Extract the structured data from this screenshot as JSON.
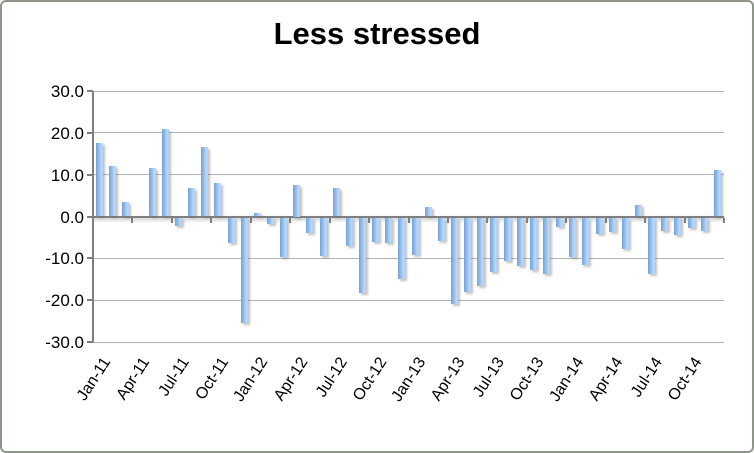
{
  "chart_data": {
    "type": "bar",
    "title": "Less stressed",
    "categories": [
      "Jan-11",
      "Feb-11",
      "Mar-11",
      "Apr-11",
      "May-11",
      "Jun-11",
      "Jul-11",
      "Aug-11",
      "Sep-11",
      "Oct-11",
      "Nov-11",
      "Dec-11",
      "Jan-12",
      "Feb-12",
      "Mar-12",
      "Apr-12",
      "May-12",
      "Jun-12",
      "Jul-12",
      "Aug-12",
      "Sep-12",
      "Oct-12",
      "Nov-12",
      "Dec-12",
      "Jan-13",
      "Feb-13",
      "Mar-13",
      "Apr-13",
      "May-13",
      "Jun-13",
      "Jul-13",
      "Aug-13",
      "Sep-13",
      "Oct-13",
      "Nov-13",
      "Dec-13",
      "Jan-14",
      "Feb-14",
      "Mar-14",
      "Apr-14",
      "May-14",
      "Jun-14",
      "Jul-14",
      "Aug-14",
      "Sep-14",
      "Oct-14",
      "Nov-14",
      "Dec-14"
    ],
    "values": [
      17.6,
      12.0,
      3.4,
      0.0,
      11.6,
      20.9,
      -2.1,
      6.8,
      16.6,
      8.0,
      -6.1,
      -25.2,
      0.9,
      -1.6,
      -9.4,
      7.5,
      -3.7,
      -9.2,
      6.9,
      -6.8,
      -18.1,
      -5.9,
      -6.2,
      -14.8,
      -8.9,
      2.2,
      -5.5,
      -20.7,
      -17.7,
      -16.3,
      -13.0,
      -10.4,
      -11.5,
      -12.6,
      -13.4,
      -2.2,
      -9.4,
      -11.4,
      -3.9,
      -3.5,
      -7.6,
      2.8,
      -13.4,
      -3.3,
      -4.3,
      -2.6,
      -3.3,
      11.2
    ],
    "x_tick_labels": [
      "Jan-11",
      "Apr-11",
      "Jul-11",
      "Oct-11",
      "Jan-12",
      "Apr-12",
      "Jul-12",
      "Oct-12",
      "Jan-13",
      "Apr-13",
      "Jul-13",
      "Oct-13",
      "Jan-14",
      "Apr-14",
      "Jul-14",
      "Oct-14"
    ],
    "x_tick_every": 3,
    "y_tick_labels": [
      "30.0",
      "20.0",
      "10.0",
      "0.0",
      "-10.0",
      "-20.0",
      "-30.0"
    ],
    "ylim": [
      -30,
      30
    ],
    "y_step": 10,
    "grid": "horizontal",
    "legend": "none",
    "colors": {
      "bar_gradient": [
        "#6fa3dc",
        "#93bdeb",
        "#c2d9f5",
        "#a9ccef"
      ],
      "gridline": "#b3b3b3",
      "axis": "#7f7f7f",
      "text": "#000000",
      "background": "#ffffff",
      "frame_border": "#8e968c"
    }
  }
}
